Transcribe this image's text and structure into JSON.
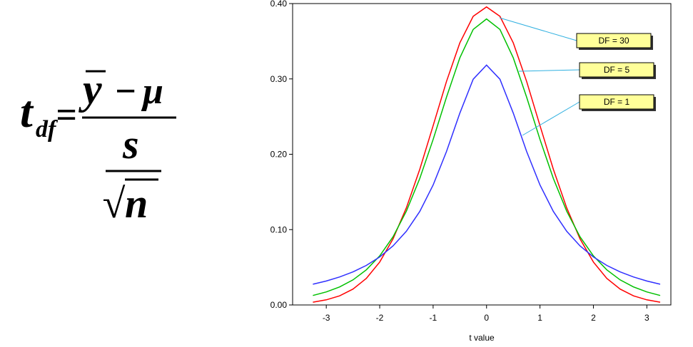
{
  "formula": {
    "lhs": "t",
    "lhs_sub": "df",
    "equals": "=",
    "numerator_left": "y",
    "minus": "−",
    "numerator_right": "μ",
    "denominator_top": "s",
    "root_symbol": "√",
    "denominator_bottom": "n"
  },
  "chart_data": {
    "type": "line",
    "xlabel": "t value",
    "x": [
      -3.25,
      -3,
      -2.75,
      -2.5,
      -2.25,
      -2,
      -1.75,
      -1.5,
      -1.25,
      -1,
      -0.75,
      -0.5,
      -0.25,
      0,
      0.25,
      0.5,
      0.75,
      1,
      1.25,
      1.5,
      1.75,
      2,
      2.25,
      2.5,
      2.75,
      3,
      3.25
    ],
    "series": [
      {
        "name": "DF = 30",
        "color": "#ff0000",
        "values": [
          0.0037,
          0.0068,
          0.0121,
          0.0211,
          0.0353,
          0.0569,
          0.0877,
          0.129,
          0.1801,
          0.238,
          0.2966,
          0.3478,
          0.3831,
          0.3956,
          0.3831,
          0.3478,
          0.2966,
          0.238,
          0.1801,
          0.129,
          0.0877,
          0.0569,
          0.0353,
          0.0211,
          0.0121,
          0.0068,
          0.0037
        ]
      },
      {
        "name": "DF = 5",
        "color": "#00c000",
        "values": [
          0.0126,
          0.0173,
          0.0239,
          0.0333,
          0.0466,
          0.0651,
          0.0905,
          0.1245,
          0.1679,
          0.2197,
          0.2757,
          0.3279,
          0.3657,
          0.3796,
          0.3657,
          0.3279,
          0.2757,
          0.2197,
          0.1679,
          0.1245,
          0.0905,
          0.0651,
          0.0466,
          0.0333,
          0.0239,
          0.0173,
          0.0126
        ]
      },
      {
        "name": "DF = 1",
        "color": "#3030ff",
        "values": [
          0.0275,
          0.0318,
          0.0372,
          0.0439,
          0.0525,
          0.0637,
          0.0784,
          0.0979,
          0.1242,
          0.1592,
          0.2037,
          0.2546,
          0.2996,
          0.3183,
          0.2996,
          0.2546,
          0.2037,
          0.1592,
          0.1242,
          0.0979,
          0.0784,
          0.0637,
          0.0525,
          0.0439,
          0.0372,
          0.0318,
          0.0275
        ]
      }
    ],
    "xlim": [
      -3.63,
      3.45
    ],
    "xticks": [
      -3,
      -2,
      -1,
      0,
      1,
      2,
      3
    ],
    "ylim": [
      0,
      0.4
    ],
    "yticks": [
      {
        "value": 0,
        "label": "0.00"
      },
      {
        "value": 0.1,
        "label": "0.10"
      },
      {
        "value": 0.2,
        "label": "0.20"
      },
      {
        "value": 0.3,
        "label": "0.30"
      },
      {
        "value": 0.4,
        "label": "0.40"
      }
    ]
  }
}
